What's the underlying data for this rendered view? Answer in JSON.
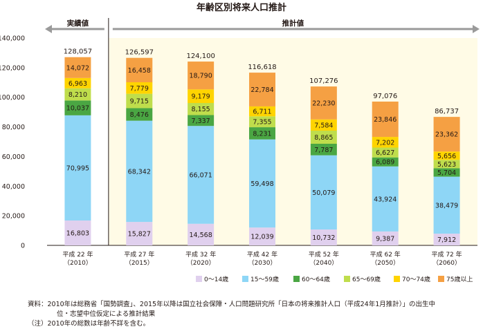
{
  "chart_data": {
    "type": "bar",
    "stacked": true,
    "title": "年齢区別将来人口推計",
    "periods": {
      "actual": "実績値",
      "projection": "推計値"
    },
    "categories": [
      [
        "平成 22 年",
        "（2010）"
      ],
      [
        "平成 27 年",
        "（2015）"
      ],
      [
        "平成 32 年",
        "（2020）"
      ],
      [
        "平成 42 年",
        "（2030）"
      ],
      [
        "平成 52 年",
        "（2040）"
      ],
      [
        "平成 62 年",
        "（2050）"
      ],
      [
        "平成 72 年",
        "（2060）"
      ]
    ],
    "series": [
      {
        "name": "0～14歳",
        "color": "#e0d0ee",
        "values": [
          16803,
          15827,
          14568,
          12039,
          10732,
          9387,
          7912
        ]
      },
      {
        "name": "15～59歳",
        "color": "#8ed6f6",
        "values": [
          70995,
          68342,
          66071,
          59498,
          50079,
          43924,
          38479
        ]
      },
      {
        "name": "60～64歳",
        "color": "#4aa643",
        "values": [
          10037,
          8476,
          7337,
          8231,
          7787,
          6089,
          5704
        ]
      },
      {
        "name": "65～69歳",
        "color": "#bfdd4c",
        "values": [
          8210,
          9715,
          8155,
          7355,
          8865,
          6627,
          5623
        ]
      },
      {
        "name": "70～74歳",
        "color": "#ffd400",
        "values": [
          6963,
          7779,
          9179,
          6711,
          7584,
          7202,
          5656
        ]
      },
      {
        "name": "75歳以上",
        "color": "#f5a043",
        "values": [
          14072,
          16458,
          18790,
          22784,
          22230,
          23846,
          23362
        ]
      }
    ],
    "totals": [
      128057,
      126597,
      124100,
      116618,
      107276,
      97076,
      86737
    ],
    "yticks": [
      0,
      20000,
      40000,
      60000,
      80000,
      100000,
      120000,
      140000
    ],
    "ylim": [
      0,
      140000
    ],
    "legend_position": "bottom-right",
    "grid": false
  },
  "source": {
    "line1": "資料：2010年は総務省「国勢調査」、2015年以降は国立社会保障・人口問題研究所「日本の将来推計人口（平成24年1月推計）」の出生中",
    "line2": "位・志望中位仮定による推計結果",
    "line3": "（注）2010年の総数は年齢不詳を含む。"
  }
}
